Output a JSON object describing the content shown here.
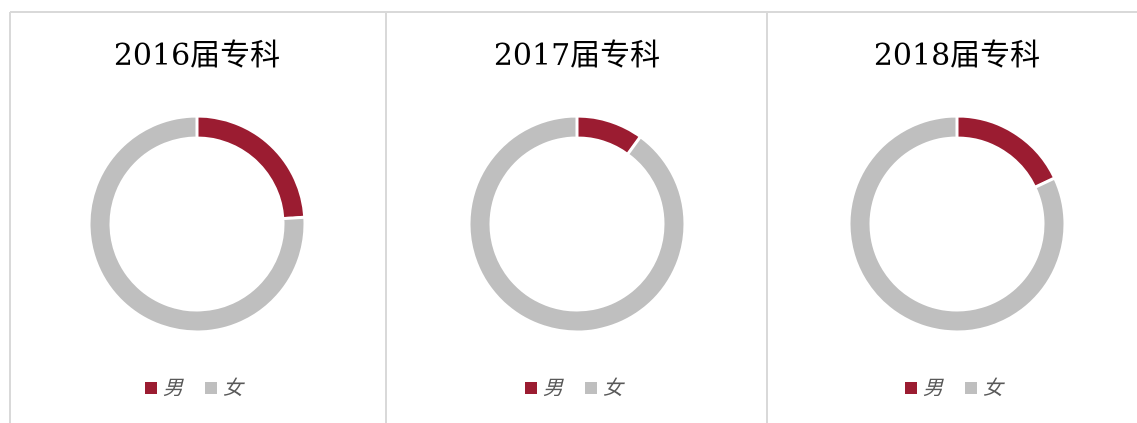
{
  "chart_data": [
    {
      "type": "pie",
      "title": "2016届专科",
      "categories": [
        "男",
        "女"
      ],
      "values": [
        24,
        76
      ],
      "colors": [
        "#9b1c31",
        "#bfbfbf"
      ],
      "donut": true
    },
    {
      "type": "pie",
      "title": "2017届专科",
      "categories": [
        "男",
        "女"
      ],
      "values": [
        10,
        90
      ],
      "colors": [
        "#9b1c31",
        "#bfbfbf"
      ],
      "donut": true
    },
    {
      "type": "pie",
      "title": "2018届专科",
      "categories": [
        "男",
        "女"
      ],
      "values": [
        18,
        82
      ],
      "colors": [
        "#9b1c31",
        "#bfbfbf"
      ],
      "donut": true
    }
  ]
}
